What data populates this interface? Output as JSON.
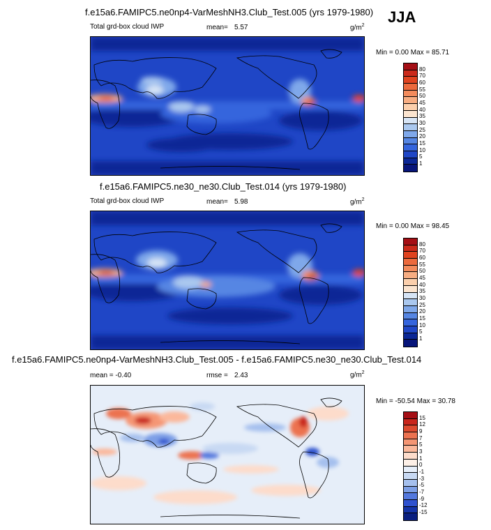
{
  "season": "JJA",
  "panels": [
    {
      "title": "f.e15a6.FAMIPC5.ne0np4-VarMeshNH3.Club_Test.005 (yrs 1979-1980)",
      "left_label": "Total grd-box cloud IWP",
      "stat1_label": "mean=",
      "stat1_value": "5.57",
      "stat2_label": "",
      "stat2_value": "",
      "units": "g/m",
      "units_sup": "2",
      "minmax": "Min =   0.00 Max =  85.71"
    },
    {
      "title": "f.e15a6.FAMIPC5.ne30_ne30.Club_Test.014 (yrs 1979-1980)",
      "left_label": "Total grd-box cloud IWP",
      "stat1_label": "mean=",
      "stat1_value": "5.98",
      "stat2_label": "",
      "stat2_value": "",
      "units": "g/m",
      "units_sup": "2",
      "minmax": "Min =   0.00 Max =  98.45"
    },
    {
      "title": "f.e15a6.FAMIPC5.ne0np4-VarMeshNH3.Club_Test.005 - f.e15a6.FAMIPC5.ne30_ne30.Club_Test.014",
      "left_label": "mean =  -0.40",
      "stat1_label": "",
      "stat1_value": "",
      "stat2_label": "rmse =",
      "stat2_value": "2.43",
      "units": "g/m",
      "units_sup": "2",
      "minmax": "Min = -50.54 Max =  30.78"
    }
  ],
  "chart_data": [
    {
      "type": "heatmap",
      "title": "f.e15a6.FAMIPC5.ne0np4-VarMeshNH3.Club_Test.005 (yrs 1979-1980)",
      "field": "Total grd-box cloud IWP",
      "units": "g/m2",
      "mean": 5.57,
      "min": 0.0,
      "max": 85.71,
      "colorbar_levels": [
        "80",
        "70",
        "60",
        "55",
        "50",
        "45",
        "40",
        "35",
        "30",
        "25",
        "20",
        "15",
        "10",
        "5",
        "1"
      ],
      "colorbar_colors": [
        "#a50f15",
        "#cb2a1b",
        "#e0431f",
        "#ec6a3d",
        "#f38b5c",
        "#f7ad82",
        "#fbcfac",
        "#fbe4cf",
        "#d6e4f5",
        "#aac8ef",
        "#7fa8ea",
        "#5686e3",
        "#3565dd",
        "#1f46c6",
        "#0b2796",
        "#07157a"
      ]
    },
    {
      "type": "heatmap",
      "title": "f.e15a6.FAMIPC5.ne30_ne30.Club_Test.014 (yrs 1979-1980)",
      "field": "Total grd-box cloud IWP",
      "units": "g/m2",
      "mean": 5.98,
      "min": 0.0,
      "max": 98.45,
      "colorbar_levels": [
        "80",
        "70",
        "60",
        "55",
        "50",
        "45",
        "40",
        "35",
        "30",
        "25",
        "20",
        "15",
        "10",
        "5",
        "1"
      ],
      "colorbar_colors": [
        "#a50f15",
        "#cb2a1b",
        "#e0431f",
        "#ec6a3d",
        "#f38b5c",
        "#f7ad82",
        "#fbcfac",
        "#fbe4cf",
        "#d6e4f5",
        "#aac8ef",
        "#7fa8ea",
        "#5686e3",
        "#3565dd",
        "#1f46c6",
        "#0b2796",
        "#07157a"
      ]
    },
    {
      "type": "heatmap",
      "title": "f.e15a6.FAMIPC5.ne0np4-VarMeshNH3.Club_Test.005 - f.e15a6.FAMIPC5.ne30_ne30.Club_Test.014",
      "units": "g/m2",
      "mean": -0.4,
      "rmse": 2.43,
      "min": -50.54,
      "max": 30.78,
      "colorbar_levels": [
        "15",
        "12",
        "9",
        "7",
        "5",
        "3",
        "1",
        "0",
        "-1",
        "-3",
        "-5",
        "-7",
        "-9",
        "-12",
        "-15"
      ],
      "colorbar_colors": [
        "#a50f15",
        "#c9261c",
        "#dd4a2f",
        "#ec7250",
        "#f59674",
        "#fbb89b",
        "#fddccb",
        "#fdf0e7",
        "#e6eef9",
        "#c8d9f3",
        "#a5c0ee",
        "#7d9fe6",
        "#5378de",
        "#2f52cf",
        "#1534a8",
        "#0a1f80"
      ]
    }
  ]
}
